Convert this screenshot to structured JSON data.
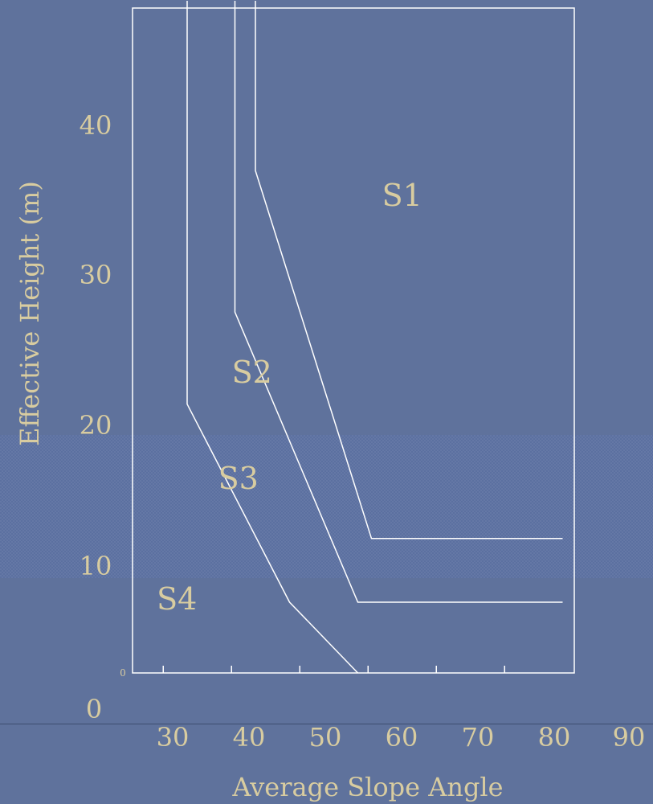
{
  "chart_data": {
    "type": "line",
    "xlabel": "Average Slope Angle",
    "ylabel": "Effective Height (m)",
    "x_tick_labels": [
      "30",
      "40",
      "50",
      "60",
      "70",
      "80",
      "90"
    ],
    "y_tick_labels": [
      "0",
      "10",
      "20",
      "30",
      "40"
    ],
    "origin_marker": "0",
    "xlim": [
      25.5,
      90
    ],
    "ylim": [
      -0.5,
      47
    ],
    "region_labels": [
      {
        "text": "S1",
        "x": 65,
        "y": 32.5
      },
      {
        "text": "S2",
        "x": 43,
        "y": 20
      },
      {
        "text": "S3",
        "x": 41,
        "y": 12.5
      },
      {
        "text": "S4",
        "x": 32,
        "y": 4
      }
    ],
    "series": [
      {
        "x": [
          33.5,
          33.5,
          48.5,
          58.5
        ],
        "y": [
          47,
          18.5,
          4.5,
          -0.5
        ]
      },
      {
        "x": [
          40.5,
          40.5,
          58.5,
          88.5
        ],
        "y": [
          47,
          25,
          4.5,
          4.5
        ]
      },
      {
        "x": [
          43.5,
          43.5,
          60.5,
          88.5
        ],
        "y": [
          47,
          35,
          9,
          9
        ]
      }
    ],
    "grid": false,
    "colors": {
      "lines": "#ffffff",
      "text": "#d8cca0",
      "background": "#5f729c"
    }
  }
}
